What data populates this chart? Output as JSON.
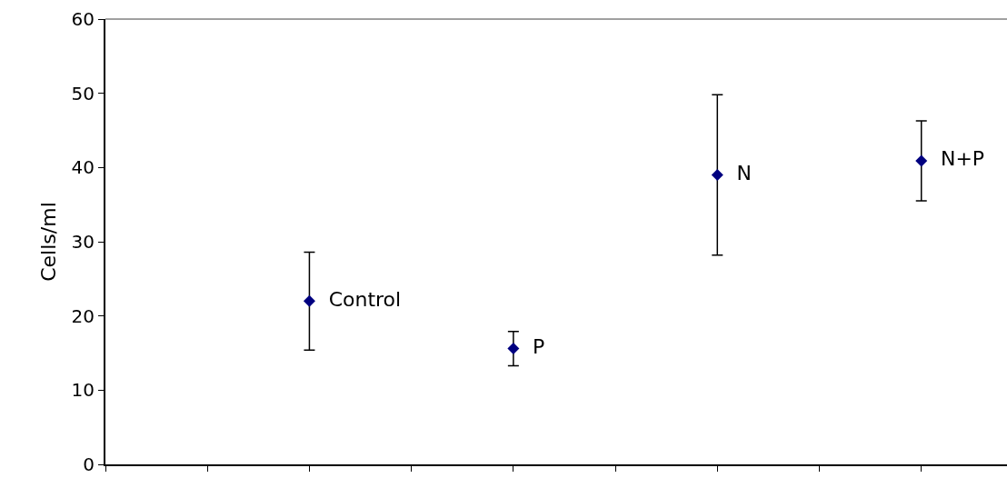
{
  "chart_data": {
    "type": "scatter",
    "ylabel": "Cells/ml",
    "categories": [
      null,
      null,
      null,
      null
    ],
    "values": [
      22,
      15.6,
      39,
      40.9
    ],
    "errors": [
      6.6,
      2.3,
      10.8,
      5.4
    ],
    "value_labels": [
      "Control",
      "P",
      "N",
      "N+P"
    ],
    "color": "#000080",
    "marker": "diamond",
    "ylim": [
      0,
      60
    ],
    "yticks": [
      0,
      10,
      20,
      30,
      40,
      50,
      60
    ],
    "grid": false,
    "legend": false
  }
}
